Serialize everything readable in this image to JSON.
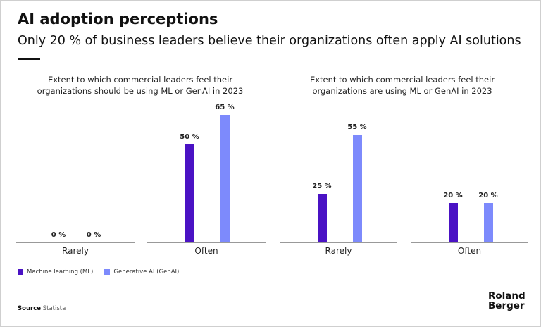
{
  "title": "AI adoption perceptions",
  "subtitle": "Only 20 % of business leaders believe their organizations often apply AI solutions",
  "colors": {
    "ml": "#4a12c4",
    "genai": "#7d8afc"
  },
  "legend": [
    "Machine learning (ML)",
    "Generative AI  (GenAI)"
  ],
  "source_label": "Source",
  "source": "Statista",
  "logo": "Roland Berger",
  "chart_data": [
    {
      "type": "bar",
      "title": "Extent to which commercial leaders feel their organizations should be using ML or GenAI in 2023",
      "categories": [
        "Rarely",
        "Often"
      ],
      "ylim": [
        0,
        100
      ],
      "series": [
        {
          "name": "Machine learning (ML)",
          "values": [
            0,
            50
          ]
        },
        {
          "name": "Generative AI  (GenAI)",
          "values": [
            0,
            65
          ]
        }
      ]
    },
    {
      "type": "bar",
      "title": "Extent to which commercial leaders feel their organizations are using ML or GenAI in 2023",
      "categories": [
        "Rarely",
        "Often"
      ],
      "ylim": [
        0,
        100
      ],
      "series": [
        {
          "name": "Machine learning (ML)",
          "values": [
            25,
            20
          ]
        },
        {
          "name": "Generative AI  (GenAI)",
          "values": [
            55,
            20
          ]
        }
      ]
    }
  ]
}
